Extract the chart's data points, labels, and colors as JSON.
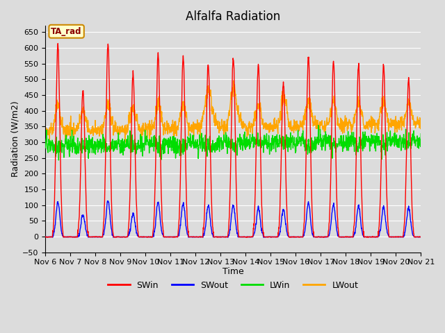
{
  "title": "Alfalfa Radiation",
  "xlabel": "Time",
  "ylabel": "Radiation (W/m2)",
  "ylim": [
    -50,
    670
  ],
  "background_color": "#dcdcdc",
  "legend_labels": [
    "SWin",
    "SWout",
    "LWin",
    "LWout"
  ],
  "line_colors": {
    "SWin": "#ff0000",
    "SWout": "#0000ff",
    "LWin": "#00dd00",
    "LWout": "#ffa500"
  },
  "annotation_text": "TA_rad",
  "annotation_bbox_facecolor": "#ffffcc",
  "annotation_bbox_edgecolor": "#cc8800",
  "num_days": 15,
  "start_day": 6,
  "SWin_day_peak": [
    610,
    470,
    615,
    520,
    580,
    575,
    550,
    570,
    550,
    490,
    570,
    560,
    550,
    545,
    505
  ],
  "SWout_day_peak": [
    120,
    75,
    125,
    80,
    120,
    115,
    105,
    110,
    100,
    95,
    115,
    110,
    105,
    100,
    100
  ],
  "LWin_base": 290,
  "LWout_base": 335,
  "grid_color": "#ffffff",
  "line_width": 1.0
}
